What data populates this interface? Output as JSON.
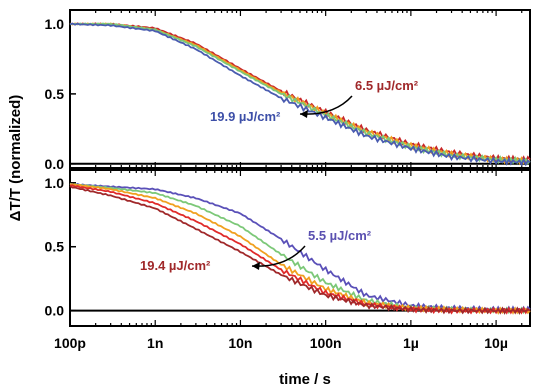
{
  "chart_data": [
    {
      "type": "line",
      "panel": "top",
      "xscale": "log",
      "xlim_s": [
        1e-10,
        2.5e-05
      ],
      "ylim": [
        -0.03,
        1.1
      ],
      "yticks": [
        0.0,
        0.5,
        1.0
      ],
      "ytick_labels": [
        "0.0",
        "0.5",
        "1.0"
      ],
      "grid": false,
      "annotations": [
        {
          "text": "6.5 µJ/cm²",
          "color": "#a0282a"
        },
        {
          "text": "19.9 µJ/cm²",
          "color": "#3d4fa8"
        }
      ],
      "series": [
        {
          "color": "#c8282a",
          "x": [
            1e-10,
            3e-10,
            1e-09,
            3e-09,
            1e-08,
            3e-08,
            1e-07,
            3e-07,
            1e-06,
            3e-06,
            1e-05,
            2.5e-05
          ],
          "y": [
            1.0,
            1.0,
            0.97,
            0.86,
            0.68,
            0.52,
            0.37,
            0.24,
            0.14,
            0.08,
            0.04,
            0.03
          ]
        },
        {
          "color": "#f0a020",
          "x": [
            1e-10,
            3e-10,
            1e-09,
            3e-09,
            1e-08,
            3e-08,
            1e-07,
            3e-07,
            1e-06,
            3e-06,
            1e-05,
            2.5e-05
          ],
          "y": [
            1.0,
            1.0,
            0.96,
            0.85,
            0.67,
            0.51,
            0.36,
            0.23,
            0.13,
            0.07,
            0.03,
            0.02
          ]
        },
        {
          "color": "#7cc878",
          "x": [
            1e-10,
            3e-10,
            1e-09,
            3e-09,
            1e-08,
            3e-08,
            1e-07,
            3e-07,
            1e-06,
            3e-06,
            1e-05,
            2.5e-05
          ],
          "y": [
            1.0,
            1.0,
            0.96,
            0.84,
            0.66,
            0.5,
            0.35,
            0.22,
            0.12,
            0.06,
            0.03,
            0.02
          ]
        },
        {
          "color": "#4a5cb0",
          "x": [
            1e-10,
            3e-10,
            1e-09,
            3e-09,
            1e-08,
            3e-08,
            1e-07,
            3e-07,
            1e-06,
            3e-06,
            1e-05,
            2.5e-05
          ],
          "y": [
            1.0,
            0.99,
            0.95,
            0.82,
            0.63,
            0.47,
            0.33,
            0.2,
            0.11,
            0.05,
            0.02,
            0.01
          ]
        }
      ]
    },
    {
      "type": "line",
      "panel": "bottom",
      "xscale": "log",
      "xlim_s": [
        1e-10,
        2.5e-05
      ],
      "ylim": [
        -0.12,
        1.1
      ],
      "yticks": [
        0.0,
        0.5,
        1.0
      ],
      "ytick_labels": [
        "0.0",
        "0.5",
        "1.0"
      ],
      "xtick_labels": [
        "100p",
        "1n",
        "10n",
        "100n",
        "1µ",
        "10µ"
      ],
      "xtick_values_s": [
        1e-10,
        1e-09,
        1e-08,
        1e-07,
        1e-06,
        1e-05
      ],
      "grid": false,
      "annotations": [
        {
          "text": "5.5 µJ/cm²",
          "color": "#5a50b0"
        },
        {
          "text": "19.4 µJ/cm²",
          "color": "#a0282a"
        }
      ],
      "series": [
        {
          "color": "#5a50b8",
          "x": [
            1e-10,
            3e-10,
            1e-09,
            3e-09,
            1e-08,
            3e-08,
            1e-07,
            3e-07,
            1e-06,
            3e-06,
            1e-05,
            2.5e-05
          ],
          "y": [
            0.99,
            0.97,
            0.95,
            0.88,
            0.76,
            0.56,
            0.32,
            0.12,
            0.04,
            0.02,
            0.01,
            0.01
          ]
        },
        {
          "color": "#7cc878",
          "x": [
            1e-10,
            3e-10,
            1e-09,
            3e-09,
            1e-08,
            3e-08,
            1e-07,
            3e-07,
            1e-06,
            3e-06,
            1e-05,
            2.5e-05
          ],
          "y": [
            0.99,
            0.96,
            0.92,
            0.82,
            0.66,
            0.44,
            0.22,
            0.08,
            0.02,
            0.01,
            0.0,
            0.0
          ]
        },
        {
          "color": "#f0a020",
          "x": [
            1e-10,
            3e-10,
            1e-09,
            3e-09,
            1e-08,
            3e-08,
            1e-07,
            3e-07,
            1e-06,
            3e-06,
            1e-05,
            2.5e-05
          ],
          "y": [
            0.99,
            0.95,
            0.88,
            0.76,
            0.58,
            0.36,
            0.17,
            0.06,
            0.02,
            0.01,
            0.0,
            0.0
          ]
        },
        {
          "color": "#e02a2a",
          "x": [
            1e-10,
            3e-10,
            1e-09,
            3e-09,
            1e-08,
            3e-08,
            1e-07,
            3e-07,
            1e-06,
            3e-06,
            1e-05,
            2.5e-05
          ],
          "y": [
            0.98,
            0.93,
            0.84,
            0.7,
            0.52,
            0.32,
            0.14,
            0.05,
            0.01,
            0.0,
            0.0,
            0.0
          ]
        },
        {
          "color": "#a0282a",
          "x": [
            1e-10,
            3e-10,
            1e-09,
            3e-09,
            1e-08,
            3e-08,
            1e-07,
            3e-07,
            1e-06,
            3e-06,
            1e-05,
            2.5e-05
          ],
          "y": [
            0.97,
            0.9,
            0.8,
            0.64,
            0.46,
            0.28,
            0.12,
            0.04,
            0.01,
            0.0,
            0.0,
            0.0
          ]
        }
      ]
    }
  ],
  "axes": {
    "xlabel": "time / s",
    "ylabel": "ΔT/T (normalized)"
  }
}
